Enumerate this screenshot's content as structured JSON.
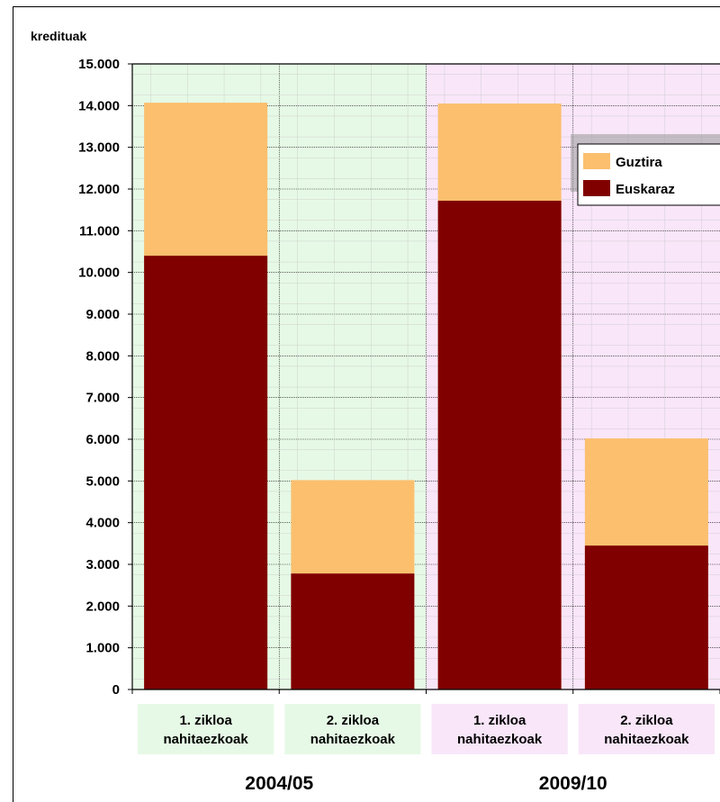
{
  "chart_data": {
    "type": "bar",
    "stacked": "overlay",
    "ylabel": "kredituak",
    "ylim": [
      0,
      15000
    ],
    "ytick_step": 1000,
    "ytick_labels": [
      "0",
      "1.000",
      "2.000",
      "3.000",
      "4.000",
      "5.000",
      "6.000",
      "7.000",
      "8.000",
      "9.000",
      "10.000",
      "11.000",
      "12.000",
      "13.000",
      "14.000",
      "15.000"
    ],
    "categories": [
      {
        "line1": "1. zikloa",
        "line2": "nahitaezkoak"
      },
      {
        "line1": "2. zikloa",
        "line2": "nahitaezkoak"
      },
      {
        "line1": "1. zikloa",
        "line2": "nahitaezkoak"
      },
      {
        "line1": "2. zikloa",
        "line2": "nahitaezkoak"
      }
    ],
    "groups": [
      {
        "label": "2004/05",
        "color": "#e6f9e6"
      },
      {
        "label": "2009/10",
        "color": "#f9e6f9"
      }
    ],
    "series": [
      {
        "name": "Guztira",
        "color": "#fbbf6e",
        "values": [
          14070,
          5020,
          14050,
          6020
        ]
      },
      {
        "name": "Euskaraz",
        "color": "#800000",
        "values": [
          10400,
          2780,
          11720,
          3450
        ]
      }
    ],
    "grid": true,
    "legend": "top-right"
  }
}
